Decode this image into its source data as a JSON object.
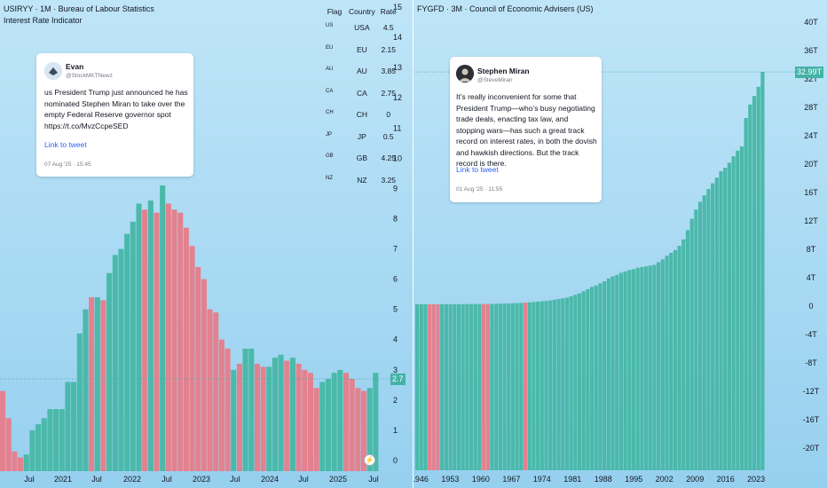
{
  "colors": {
    "up": "#4bb9aa",
    "down": "#e4818f",
    "bg": "#a9d9f3",
    "tag": "#43b3a5"
  },
  "left_chart": {
    "header": {
      "title": "USIRYY · 1M · Bureau of Labour Statistics",
      "subtitle": "Interest Rate Indicator"
    },
    "flag_table": {
      "headers": [
        "Flag",
        "Country",
        "Rate"
      ],
      "rows": [
        {
          "flag": "US",
          "country": "USA",
          "rate": "4.5"
        },
        {
          "flag": "EU",
          "country": "EU",
          "rate": "2.15"
        },
        {
          "flag": "AU",
          "country": "AU",
          "rate": "3.85"
        },
        {
          "flag": "CA",
          "country": "CA",
          "rate": "2.75"
        },
        {
          "flag": "CH",
          "country": "CH",
          "rate": "0"
        },
        {
          "flag": "JP",
          "country": "JP",
          "rate": "0.5"
        },
        {
          "flag": "GB",
          "country": "GB",
          "rate": "4.25"
        },
        {
          "flag": "NZ",
          "country": "NZ",
          "rate": "3.25"
        }
      ]
    },
    "tweet": {
      "name": "Evan",
      "handle": "@StockMKTNewz",
      "text": "us President Trump just announced he has nominated Stephen Miran to take over the empty Federal Reserve governor spot https://t.co/MvzCcpeSED",
      "link": "Link to tweet",
      "date": "07 Aug '25 · 15:45"
    },
    "price_tag": "2.7",
    "bolt_icon": "lightning-icon"
  },
  "right_chart": {
    "header": {
      "title": "FYGFD · 3M · Council of Economic Advisers (US)"
    },
    "tweet": {
      "name": "Stephen Miran",
      "handle": "@SteveMiran",
      "text": "It’s really inconvenient for some that President Trump—who’s busy negotiating trade deals, enacting tax law, and stopping wars—has such a great track record on interest rates, in both the dovish and hawkish directions. But the track record is there.",
      "link": "Link to tweet",
      "date": "01 Aug '25 · 11:55"
    },
    "price_tag": "32.99T"
  },
  "chart_data": [
    {
      "type": "bar",
      "title": "USIRYY · 1M · Bureau of Labour Statistics",
      "ylim": [
        0,
        15
      ],
      "y_ticks": [
        "0",
        "1",
        "2",
        "3",
        "4",
        "5",
        "6",
        "7",
        "8",
        "9",
        "10",
        "11",
        "12",
        "13",
        "14",
        "15"
      ],
      "x_ticks": [
        "Jul",
        "2021",
        "Jul",
        "2022",
        "Jul",
        "2023",
        "Jul",
        "2024",
        "Jul",
        "2025",
        "Jul"
      ],
      "values": [
        2.3,
        1.4,
        0.3,
        0.1,
        0.2,
        1.0,
        1.2,
        1.4,
        1.7,
        1.7,
        1.7,
        2.6,
        2.6,
        4.2,
        5.0,
        5.4,
        5.4,
        5.3,
        6.2,
        6.8,
        7.0,
        7.5,
        7.9,
        8.5,
        8.3,
        8.6,
        8.2,
        9.1,
        8.5,
        8.3,
        8.2,
        7.7,
        7.1,
        6.4,
        6.0,
        5.0,
        4.9,
        4.0,
        3.7,
        3.0,
        3.2,
        3.7,
        3.7,
        3.2,
        3.1,
        3.1,
        3.4,
        3.5,
        3.3,
        3.4,
        3.2,
        3.0,
        2.9,
        2.4,
        2.6,
        2.7,
        2.9,
        3.0,
        2.9,
        2.7,
        2.4,
        2.3,
        2.4,
        2.9
      ],
      "directions": [
        "d",
        "d",
        "d",
        "d",
        "u",
        "u",
        "u",
        "u",
        "u",
        "u",
        "u",
        "u",
        "u",
        "u",
        "u",
        "d",
        "u",
        "d",
        "u",
        "u",
        "u",
        "u",
        "u",
        "u",
        "d",
        "u",
        "d",
        "u",
        "d",
        "d",
        "d",
        "d",
        "d",
        "d",
        "d",
        "d",
        "d",
        "d",
        "d",
        "u",
        "d",
        "u",
        "u",
        "d",
        "d",
        "u",
        "u",
        "u",
        "d",
        "u",
        "d",
        "d",
        "d",
        "d",
        "u",
        "u",
        "u",
        "u",
        "d",
        "d",
        "d",
        "d",
        "u",
        "u"
      ],
      "price_tag_value": 2.7
    },
    {
      "type": "bar",
      "title": "FYGFD · 3M · Council of Economic Advisers (US)",
      "ylim": [
        -24,
        43
      ],
      "y_ticks": [
        "-20T",
        "-16T",
        "-12T",
        "-8T",
        "-4T",
        "0",
        "4T",
        "8T",
        "12T",
        "16T",
        "20T",
        "24T",
        "28T",
        "32T",
        "36T",
        "40T"
      ],
      "x_ticks": [
        "1946",
        "1953",
        "1960",
        "1967",
        "1974",
        "1981",
        "1988",
        "1995",
        "2002",
        "2009",
        "2016",
        "2023"
      ],
      "x_start_year": 1945,
      "x_end_year": 2025,
      "values": [
        0.26,
        0.27,
        0.26,
        0.26,
        0.26,
        0.26,
        0.27,
        0.27,
        0.27,
        0.27,
        0.27,
        0.27,
        0.28,
        0.29,
        0.29,
        0.29,
        0.3,
        0.3,
        0.32,
        0.33,
        0.34,
        0.36,
        0.38,
        0.4,
        0.42,
        0.45,
        0.48,
        0.53,
        0.58,
        0.63,
        0.68,
        0.73,
        0.8,
        0.9,
        1.0,
        1.1,
        1.2,
        1.4,
        1.6,
        1.8,
        2.1,
        2.4,
        2.7,
        2.9,
        3.2,
        3.5,
        3.9,
        4.2,
        4.4,
        4.7,
        4.9,
        5.1,
        5.2,
        5.4,
        5.5,
        5.6,
        5.7,
        5.8,
        6.2,
        6.6,
        7.1,
        7.5,
        7.9,
        8.5,
        9.4,
        10.7,
        12.3,
        13.6,
        14.7,
        15.6,
        16.5,
        17.3,
        18.1,
        19.0,
        19.5,
        20.2,
        21.1,
        21.9,
        22.5,
        26.5,
        28.4,
        29.6,
        30.9,
        32.99
      ],
      "red_indices": [
        3,
        4,
        5,
        16,
        17,
        26
      ],
      "price_tag_value": 32.99
    }
  ]
}
